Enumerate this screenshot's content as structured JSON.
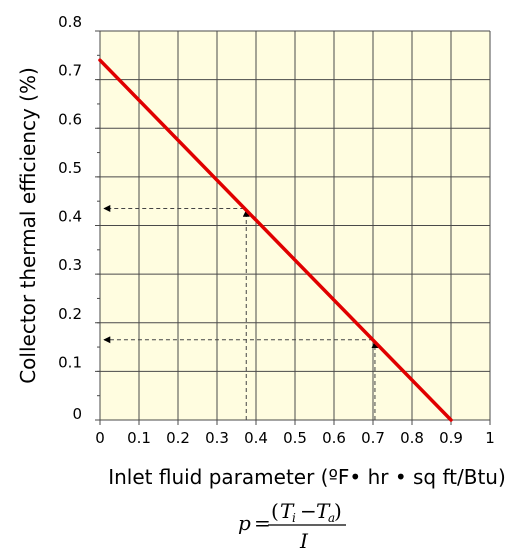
{
  "chart_data": {
    "type": "line",
    "title": "",
    "xlabel": "Inlet fluid parameter (ºF• hr • sq ft/Btu)",
    "ylabel": "Collector thermal efficiency (%)",
    "xlim": [
      0,
      1
    ],
    "ylim": [
      0,
      0.8
    ],
    "x_ticks": [
      "0",
      "0.1",
      "0.2",
      "0.3",
      "0.4",
      "0.5",
      "0.6",
      "0.7",
      "0.8",
      "0.9",
      "1"
    ],
    "y_ticks": [
      "0",
      "0.1",
      "0.2",
      "0.3",
      "0.4",
      "0.5",
      "0.6",
      "0.7",
      "0.8"
    ],
    "grid": true,
    "background_color": "#fffde0",
    "line_color": "#e00000",
    "series": [
      {
        "x": [
          0,
          0.9
        ],
        "y": [
          0.74,
          0
        ]
      }
    ],
    "annotations": [
      {
        "type": "readout",
        "x": 0.375,
        "y": 0.435
      },
      {
        "type": "readout",
        "x": 0.705,
        "y": 0.165
      }
    ]
  },
  "formula": {
    "lhs": "p",
    "equals": "=",
    "open_paren": "(",
    "close_paren": ")",
    "t_i": "T",
    "t_i_sub": "i",
    "minus": "−",
    "t_a": "T",
    "t_a_sub": "a",
    "denominator": "I"
  }
}
